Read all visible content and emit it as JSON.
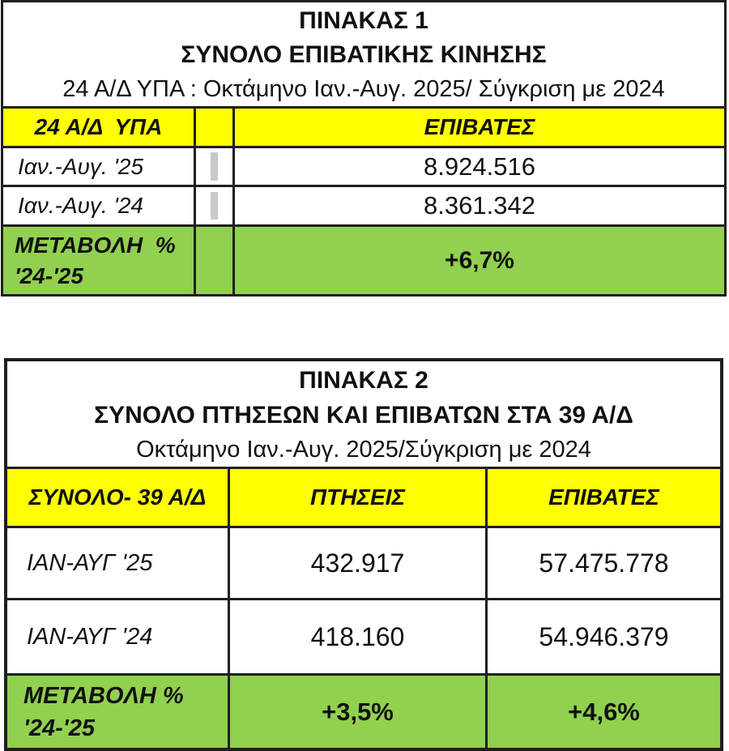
{
  "colors": {
    "yellow": "#FFFF00",
    "green": "#92D050",
    "border": "#1F1F1F",
    "gray_marker": "#C9C9C9"
  },
  "table1": {
    "title_line1": "ΠΙΝΑΚΑΣ 1",
    "title_line2": "ΣΥΝΟΛΟ ΕΠΙΒΑΤΙΚΗΣ ΚΙΝΗΣΗΣ",
    "subtitle": "24 Α/Δ ΥΠΑ : Οκτάμηνο Ιαν.-Αυγ. 2025/ Σύγκριση με 2024",
    "header": {
      "col_label": "24 Α/Δ  ΥΠΑ",
      "passengers": "ΕΠΙΒΑΤΕΣ"
    },
    "rows": [
      {
        "label": "Ιαν.-Αυγ. '25",
        "passengers": "8.924.516"
      },
      {
        "label": "Ιαν.-Αυγ. '24",
        "passengers": "8.361.342"
      }
    ],
    "change": {
      "label_line1": "ΜΕΤΑΒΟΛΗ  %",
      "label_line2": "'24-'25",
      "passengers": "+6,7%"
    }
  },
  "table2": {
    "title_line1": "ΠΙΝΑΚΑΣ 2",
    "title_line2": "ΣΥΝΟΛΟ ΠΤΗΣΕΩΝ ΚΑΙ ΕΠΙΒΑΤΩΝ ΣΤΑ 39 Α/Δ",
    "subtitle": "Οκτάμηνο Ιαν.-Αυγ. 2025/Σύγκριση με 2024",
    "header": {
      "col_label": "ΣΥΝΟΛΟ- 39 Α/Δ",
      "flights": "ΠΤΗΣΕΙΣ",
      "passengers": "ΕΠΙΒΑΤΕΣ"
    },
    "rows": [
      {
        "label": "ΙΑΝ-ΑΥΓ '25",
        "flights": "432.917",
        "passengers": "57.475.778"
      },
      {
        "label": "ΙΑΝ-ΑΥΓ '24",
        "flights": "418.160",
        "passengers": "54.946.379"
      }
    ],
    "change": {
      "label_line1": "ΜΕΤΑΒΟΛΗ %",
      "label_line2": "'24-'25",
      "flights": "+3,5%",
      "passengers": "+4,6%"
    }
  }
}
